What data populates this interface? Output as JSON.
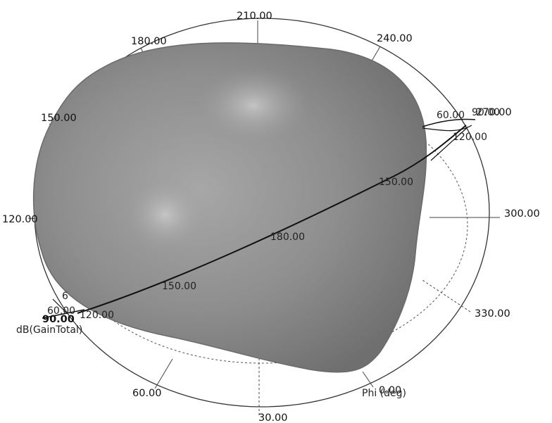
{
  "chart_data": {
    "type": "3d-polar-radiation-pattern",
    "quantity_label": "dB(GainTotal)",
    "phi_axis_title": "Phi (deg)",
    "phi_tick_labels": [
      "0.00",
      "30.00",
      "60.00",
      "90.00",
      "120.00",
      "150.00",
      "180.00",
      "210.00",
      "240.00",
      "270.00",
      "300.00",
      "330.00"
    ],
    "theta_arc_labels": [
      "150.00",
      "180.00",
      "150.00",
      "120.00",
      "90.00",
      "60.00"
    ],
    "theta_left_labels": [
      "120.00",
      "90.00",
      "60.00",
      "6"
    ],
    "colors": {
      "surface": "#8a8a8a",
      "surface_highlight": "#bdbdbd",
      "ring": "#222222",
      "text": "#111111"
    }
  }
}
